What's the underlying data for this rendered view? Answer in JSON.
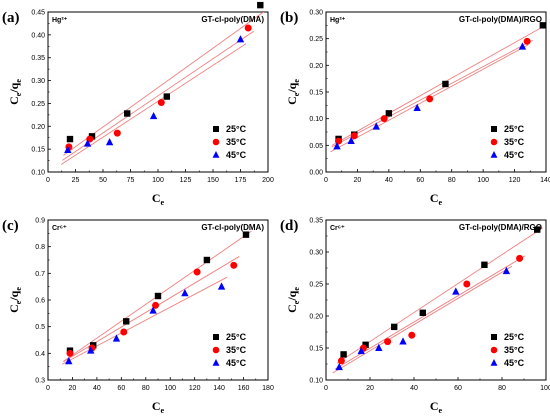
{
  "chart_data": [
    {
      "type": "scatter",
      "panel_label": "(a)",
      "ion": "Hg²⁺",
      "title": "GT-cl-poly(DMA)",
      "xlabel": "Ce",
      "ylabel": "Ce/qe",
      "xlim": [
        0,
        200
      ],
      "ylim": [
        0.1,
        0.45
      ],
      "xticks": [
        "0",
        "25",
        "50",
        "75",
        "100",
        "125",
        "150",
        "175",
        "200"
      ],
      "yticks": [
        "0.10",
        "0.15",
        "0.20",
        "0.25",
        "0.30",
        "0.35",
        "0.40",
        "0.45"
      ],
      "legend_position": "bottom-right",
      "series": [
        {
          "name": "25°C",
          "marker": "square",
          "color": "#000000",
          "x": [
            20,
            40,
            72,
            108,
            193
          ],
          "y": [
            0.172,
            0.178,
            0.228,
            0.265,
            0.465
          ]
        },
        {
          "name": "35°C",
          "marker": "circle",
          "color": "#ff0000",
          "x": [
            19,
            38,
            63,
            103,
            182
          ],
          "y": [
            0.155,
            0.172,
            0.185,
            0.252,
            0.415
          ]
        },
        {
          "name": "45°C",
          "marker": "triangle",
          "color": "#0000ff",
          "x": [
            18,
            36,
            56,
            96,
            175
          ],
          "y": [
            0.148,
            0.162,
            0.165,
            0.222,
            0.39
          ]
        }
      ]
    },
    {
      "type": "scatter",
      "panel_label": "(b)",
      "ion": "Hg²⁺",
      "title": "GT-cl-poly(DMA)/RGO",
      "xlabel": "Ce",
      "ylabel": "Ce/qe",
      "xlim": [
        0,
        140
      ],
      "ylim": [
        0.0,
        0.3
      ],
      "xticks": [
        "0",
        "20",
        "40",
        "60",
        "80",
        "100",
        "120",
        "140"
      ],
      "yticks": [
        "0.00",
        "0.05",
        "0.10",
        "0.15",
        "0.20",
        "0.25",
        "0.30"
      ],
      "legend_position": "bottom-right",
      "series": [
        {
          "name": "25°C",
          "marker": "square",
          "color": "#000000",
          "x": [
            8,
            18,
            40,
            76,
            138
          ],
          "y": [
            0.062,
            0.07,
            0.11,
            0.165,
            0.275
          ]
        },
        {
          "name": "35°C",
          "marker": "circle",
          "color": "#ff0000",
          "x": [
            8,
            18,
            37,
            66,
            128
          ],
          "y": [
            0.058,
            0.068,
            0.1,
            0.137,
            0.245
          ]
        },
        {
          "name": "45°C",
          "marker": "triangle",
          "color": "#0000ff",
          "x": [
            7,
            16,
            32,
            58,
            125
          ],
          "y": [
            0.048,
            0.058,
            0.085,
            0.12,
            0.235
          ]
        }
      ]
    },
    {
      "type": "scatter",
      "panel_label": "(c)",
      "ion": "Cr⁶⁺",
      "title": "GT-cl-poly(DMA)",
      "xlabel": "Ce",
      "ylabel": "Ce/qe",
      "xlim": [
        0,
        180
      ],
      "ylim": [
        0.3,
        0.9
      ],
      "xticks": [
        "0",
        "20",
        "40",
        "60",
        "80",
        "100",
        "120",
        "140",
        "160",
        "180"
      ],
      "yticks": [
        "0.3",
        "0.4",
        "0.5",
        "0.6",
        "0.7",
        "0.8",
        "0.9"
      ],
      "legend_position": "bottom-right",
      "series": [
        {
          "name": "25°C",
          "marker": "square",
          "color": "#000000",
          "x": [
            18,
            37,
            64,
            90,
            130,
            162
          ],
          "y": [
            0.41,
            0.43,
            0.52,
            0.615,
            0.75,
            0.845
          ]
        },
        {
          "name": "35°C",
          "marker": "circle",
          "color": "#ff0000",
          "x": [
            18,
            36,
            62,
            88,
            122,
            152
          ],
          "y": [
            0.4,
            0.42,
            0.48,
            0.58,
            0.705,
            0.73
          ]
        },
        {
          "name": "45°C",
          "marker": "triangle",
          "color": "#0000ff",
          "x": [
            17,
            35,
            56,
            86,
            112,
            142
          ],
          "y": [
            0.37,
            0.41,
            0.455,
            0.56,
            0.625,
            0.65
          ]
        }
      ]
    },
    {
      "type": "scatter",
      "panel_label": "(d)",
      "ion": "Cr⁶⁺",
      "title": "GT-cl-poly(DMA)/RGO",
      "xlabel": "Ce",
      "ylabel": "Ce/qe",
      "xlim": [
        0,
        100
      ],
      "ylim": [
        0.1,
        0.35
      ],
      "xticks": [
        "0",
        "20",
        "40",
        "60",
        "80",
        "100"
      ],
      "yticks": [
        "0.10",
        "0.15",
        "0.20",
        "0.25",
        "0.30",
        "0.35"
      ],
      "legend_position": "bottom-right",
      "series": [
        {
          "name": "25°C",
          "marker": "square",
          "color": "#000000",
          "x": [
            8,
            18,
            31,
            44,
            72,
            96
          ],
          "y": [
            0.14,
            0.155,
            0.183,
            0.205,
            0.28,
            0.335
          ]
        },
        {
          "name": "35°C",
          "marker": "circle",
          "color": "#ff0000",
          "x": [
            7,
            17,
            28,
            39,
            64,
            88
          ],
          "y": [
            0.13,
            0.15,
            0.16,
            0.17,
            0.25,
            0.29
          ]
        },
        {
          "name": "45°C",
          "marker": "triangle",
          "color": "#0000ff",
          "x": [
            6,
            16,
            24,
            35,
            59,
            82
          ],
          "y": [
            0.12,
            0.145,
            0.15,
            0.16,
            0.238,
            0.27
          ]
        }
      ]
    }
  ],
  "fit_line_color": "#f08080"
}
